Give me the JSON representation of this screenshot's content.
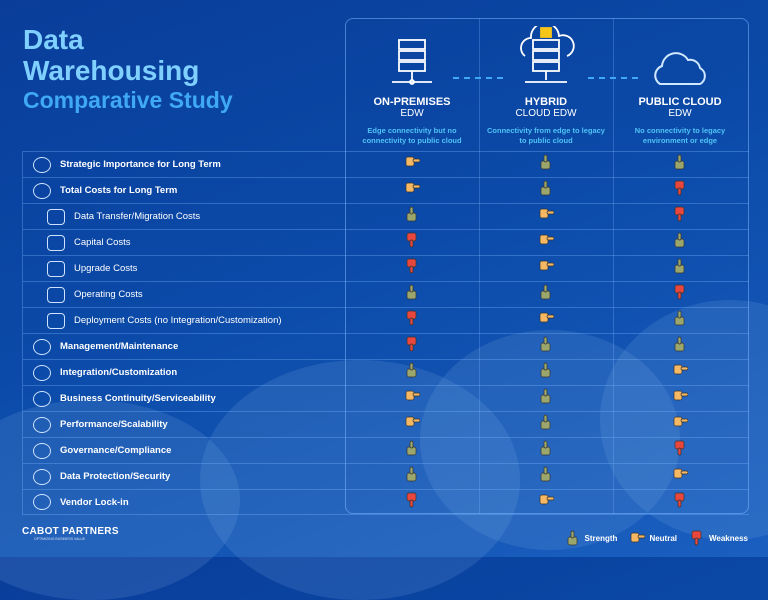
{
  "title": {
    "line1": "Data",
    "line2": "Warehousing",
    "line3": "Comparative Study"
  },
  "columns": [
    {
      "name": "ON-PREMISES",
      "sub": "EDW",
      "desc": "Edge connectivity but no connectivity to public cloud",
      "icon": "server-icon"
    },
    {
      "name": "HYBRID",
      "sub": "CLOUD EDW",
      "desc": "Connectivity from edge to legacy to public cloud",
      "icon": "cloud-server-lock-icon"
    },
    {
      "name": "PUBLIC CLOUD",
      "sub": "EDW",
      "desc": "No connectivity to legacy environment or edge",
      "icon": "cloud-icon"
    }
  ],
  "rows": [
    {
      "label": "Strategic  Importance for Long Term",
      "level": "main",
      "ratings": [
        "neutral",
        "strength",
        "strength"
      ]
    },
    {
      "label": "Total Costs for Long Term",
      "level": "main",
      "ratings": [
        "neutral",
        "strength",
        "weakness"
      ]
    },
    {
      "label": "Data Transfer/Migration Costs",
      "level": "sub",
      "ratings": [
        "strength",
        "neutral",
        "weakness"
      ]
    },
    {
      "label": "Capital Costs",
      "level": "sub",
      "ratings": [
        "weakness",
        "neutral",
        "strength"
      ]
    },
    {
      "label": "Upgrade Costs",
      "level": "sub",
      "ratings": [
        "weakness",
        "neutral",
        "strength"
      ]
    },
    {
      "label": "Operating Costs",
      "level": "sub",
      "ratings": [
        "strength",
        "strength",
        "weakness"
      ]
    },
    {
      "label": "Deployment Costs (no Integration/Customization)",
      "level": "sub",
      "ratings": [
        "weakness",
        "neutral",
        "strength"
      ]
    },
    {
      "label": "Management/Maintenance",
      "level": "main",
      "ratings": [
        "weakness",
        "strength",
        "strength"
      ]
    },
    {
      "label": "Integration/Customization",
      "level": "main",
      "ratings": [
        "strength",
        "strength",
        "neutral"
      ]
    },
    {
      "label": "Business Continuity/Serviceability",
      "level": "main",
      "ratings": [
        "neutral",
        "strength",
        "neutral"
      ]
    },
    {
      "label": "Performance/Scalability",
      "level": "main",
      "ratings": [
        "neutral",
        "strength",
        "neutral"
      ]
    },
    {
      "label": "Governance/Compliance",
      "level": "main",
      "ratings": [
        "strength",
        "strength",
        "weakness"
      ]
    },
    {
      "label": "Data Protection/Security",
      "level": "main",
      "ratings": [
        "strength",
        "strength",
        "neutral"
      ]
    },
    {
      "label": "Vendor Lock-in",
      "level": "main",
      "ratings": [
        "weakness",
        "neutral",
        "weakness"
      ]
    }
  ],
  "legend": {
    "strength": "Strength",
    "neutral": "Neutral",
    "weakness": "Weakness"
  },
  "colors": {
    "strength": "#9aa66c",
    "neutral": "#f6b862",
    "weakness": "#e9473d",
    "accent": "#3fa9f5"
  },
  "logo": {
    "name": "CABOT PARTNERS",
    "tagline": "OPTIMIZING BUSINESS VALUE"
  }
}
